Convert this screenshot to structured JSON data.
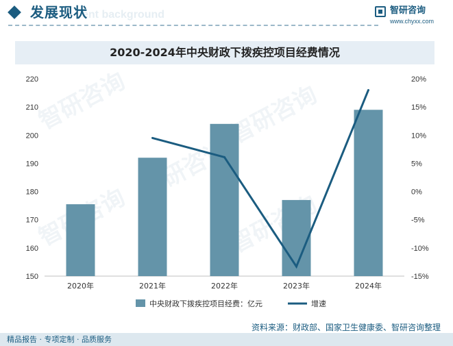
{
  "header": {
    "title": "发展现状",
    "ghost_text": "ent background"
  },
  "brand": {
    "name": "智研咨询",
    "url": "www.chyxx.com"
  },
  "watermark": "智研咨询",
  "chart_data": {
    "type": "bar",
    "title": "2020-2024年中央财政下拨疾控项目经费情况",
    "categories": [
      "2020年",
      "2021年",
      "2022年",
      "2023年",
      "2024年"
    ],
    "series": [
      {
        "name": "中央财政下拨疾控项目经费：亿元",
        "type": "bar",
        "axis": "left",
        "values": [
          175.5,
          192,
          204,
          177,
          209
        ]
      },
      {
        "name": "增速",
        "type": "line",
        "axis": "right",
        "values": [
          null,
          9.5,
          6.1,
          -13.3,
          18.0
        ]
      }
    ],
    "y_left": {
      "min": 150,
      "max": 220,
      "ticks": [
        "150",
        "160",
        "170",
        "180",
        "190",
        "200",
        "210",
        "220"
      ]
    },
    "y_right": {
      "min": -15,
      "max": 20,
      "ticks": [
        "-15%",
        "-10%",
        "-5%",
        "0%",
        "5%",
        "10%",
        "15%",
        "20%"
      ]
    },
    "legend_position": "bottom",
    "colors": {
      "bar": "#6494a9",
      "line": "#1b5c80"
    }
  },
  "source": "资料来源：财政部、国家卫生健康委、智研咨询整理",
  "footer": "精品报告 · 专项定制 · 品质服务"
}
